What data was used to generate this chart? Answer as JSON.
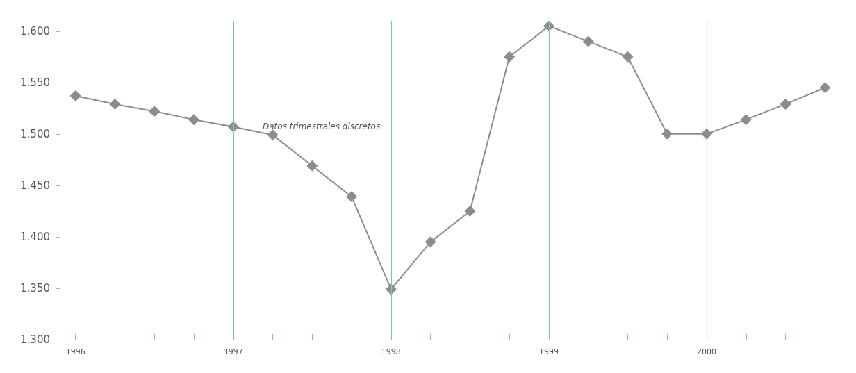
{
  "chart_data": {
    "type": "line",
    "marker": "diamond",
    "line_style": "solid",
    "x": [
      1996,
      1996.25,
      1996.5,
      1996.75,
      1997,
      1997.25,
      1997.5,
      1997.75,
      1998,
      1998.25,
      1998.5,
      1998.75,
      1999,
      1999.25,
      1999.5,
      1999.75,
      2000,
      2000.25,
      2000.5,
      2000.75
    ],
    "series": [
      {
        "color": "#8c8c8c",
        "values": [
          1.537,
          1.529,
          1.522,
          1.514,
          1.507,
          1.499,
          1.469,
          1.439,
          1.349,
          1.395,
          1.425,
          1.575,
          1.605,
          1.59,
          1.575,
          1.5,
          1.5,
          1.514,
          1.529,
          1.545
        ]
      }
    ],
    "xlim": [
      1995.9,
      2000.85
    ],
    "xticks": [
      1996,
      {
        "value": 1996.25,
        "label": null
      },
      {
        "value": 1996.5,
        "label": null
      },
      {
        "value": 1996.75,
        "label": null
      },
      1997,
      {
        "value": 1997.25,
        "label": null
      },
      {
        "value": 1997.5,
        "label": null
      },
      {
        "value": 1997.75,
        "label": null
      },
      1998,
      {
        "value": 1998.25,
        "label": null
      },
      {
        "value": 1998.5,
        "label": null
      },
      {
        "value": 1998.75,
        "label": null
      },
      1999,
      {
        "value": 1999.25,
        "label": null
      },
      {
        "value": 1999.5,
        "label": null
      },
      {
        "value": 1999.75,
        "label": null
      },
      2000,
      {
        "value": 2000.25,
        "label": null
      },
      {
        "value": 2000.5,
        "label": null
      },
      {
        "value": 2000.75,
        "label": null
      }
    ],
    "ylim": [
      1.3,
      1.61
    ],
    "yticks": [
      {
        "value": 1.3,
        "label": "1.300"
      },
      {
        "value": 1.35,
        "label": "1.350"
      },
      {
        "value": 1.4,
        "label": "1.400"
      },
      {
        "value": 1.45,
        "label": "1.450"
      },
      {
        "value": 1.5,
        "label": "1.500"
      },
      {
        "value": 1.55,
        "label": "1.550"
      },
      {
        "value": 1.6,
        "label": "1.600"
      }
    ],
    "ref_lines": [
      {
        "axis": "x",
        "value": 1997,
        "color": "#7fc4b4"
      },
      {
        "axis": "x",
        "value": 1998,
        "color": "#7fc4b4"
      },
      {
        "axis": "x",
        "value": 1999,
        "color": "#7fc4b4"
      },
      {
        "axis": "x",
        "value": 2000,
        "color": "#7fc4b4"
      }
    ],
    "annotations": [
      "Datos trimestrales discretos"
    ]
  }
}
